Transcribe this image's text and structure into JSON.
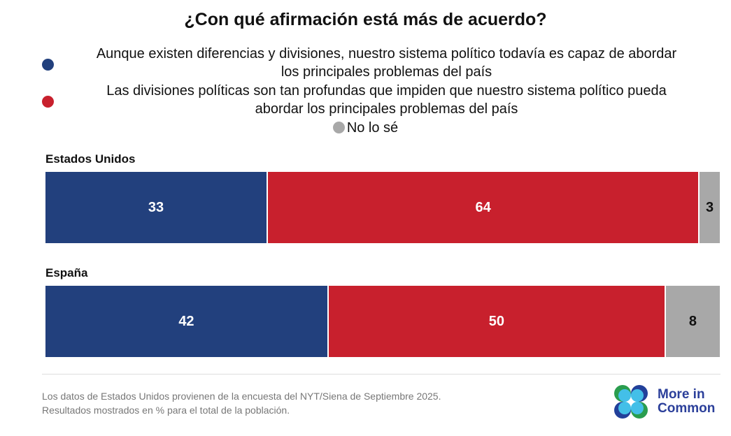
{
  "chart_data": {
    "type": "bar",
    "orientation": "horizontal-stacked",
    "title": "¿Con qué afirmación está más de acuerdo?",
    "categories": [
      "Estados Unidos",
      "España"
    ],
    "series": [
      {
        "name": "Aunque existen diferencias y divisiones, nuestro sistema político todavía es capaz de abordar los principales problemas del país",
        "color": "#22407d",
        "values": [
          33,
          42
        ]
      },
      {
        "name": "Las divisiones políticas son tan profundas que impiden que nuestro sistema político pueda abordar los principales problemas del país",
        "color": "#c8202d",
        "values": [
          64,
          50
        ]
      },
      {
        "name": "No lo sé",
        "color": "#a8a8a8",
        "values": [
          3,
          8
        ]
      }
    ],
    "legend_position": "top",
    "grid": false
  },
  "legend_lines": [
    [
      "Aunque existen diferencias y divisiones, nuestro sistema político todavía es capaz de abordar",
      "los principales problemas del país"
    ],
    [
      "Las divisiones políticas son tan profundas que impiden que nuestro sistema político pueda",
      "abordar los principales problemas del país"
    ]
  ],
  "footer": {
    "line1": "Los datos de Estados Unidos provienen de la encuesta del NYT/Siena de Septiembre 2025.",
    "line2": "Resultados mostrados en % para el total de la población."
  },
  "logo": {
    "line1": "More in",
    "line2": "Common"
  }
}
